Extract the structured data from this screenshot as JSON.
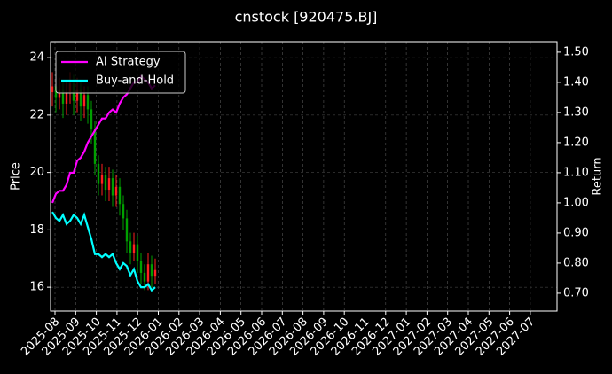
{
  "chart_data": {
    "type": "candlestick",
    "title": "cnstock [920475.BJ]",
    "ylabel": "Price",
    "y2label": "Return",
    "xticks": [
      "2025-08",
      "2025-09",
      "2025-10",
      "2025-11",
      "2025-12",
      "2026-01",
      "2026-02",
      "2026-03",
      "2026-04",
      "2026-05",
      "2026-06",
      "2026-07",
      "2026-08",
      "2026-09",
      "2026-10",
      "2026-11",
      "2026-12",
      "2027-01",
      "2027-02",
      "2027-03",
      "2027-04",
      "2027-05",
      "2027-06",
      "2027-07"
    ],
    "ylim": [
      15.17,
      24.56
    ],
    "yticks": [
      16,
      18,
      20,
      22,
      24
    ],
    "y2lim": [
      0.641,
      1.535
    ],
    "y2ticks": [
      {
        "value": 0.7,
        "label": "0.70"
      },
      {
        "value": 0.8,
        "label": "0.80"
      },
      {
        "value": 0.9,
        "label": "0.90"
      },
      {
        "value": 1.0,
        "label": "1.00"
      },
      {
        "value": 1.1,
        "label": "1.10"
      },
      {
        "value": 1.2,
        "label": "1.20"
      },
      {
        "value": 1.3,
        "label": "1.30"
      },
      {
        "value": 1.4,
        "label": "1.40"
      },
      {
        "value": 1.5,
        "label": "1.50"
      }
    ],
    "grid": true,
    "legend": "upper left",
    "up_color": "#ff2020",
    "down_color": "#00a000",
    "open": [
      22.8,
      23.0,
      22.6,
      22.9,
      22.4,
      22.8,
      23.1,
      22.5,
      22.9,
      22.3,
      22.7,
      22.2,
      21.5,
      20.3,
      19.6,
      19.9,
      19.4,
      19.8,
      19.2,
      19.5,
      18.9,
      18.4,
      17.6,
      17.2,
      17.5,
      16.9,
      16.5,
      16.2,
      16.8,
      16.4
    ],
    "high": [
      23.5,
      23.4,
      23.3,
      23.2,
      23.2,
      23.5,
      23.4,
      23.3,
      23.2,
      23.0,
      23.0,
      22.5,
      21.8,
      20.6,
      20.3,
      20.2,
      20.2,
      20.1,
      19.9,
      19.8,
      19.2,
      18.7,
      17.9,
      17.9,
      17.8,
      17.2,
      16.8,
      17.2,
      17.1,
      17.0
    ],
    "low": [
      22.3,
      22.1,
      22.2,
      21.9,
      22.0,
      22.4,
      22.0,
      22.1,
      21.8,
      21.9,
      21.7,
      21.0,
      19.9,
      19.2,
      19.2,
      19.0,
      19.0,
      18.8,
      18.8,
      18.5,
      18.0,
      17.2,
      16.8,
      16.9,
      16.5,
      16.1,
      15.9,
      15.9,
      16.0,
      16.1
    ],
    "close": [
      23.0,
      22.6,
      22.9,
      22.4,
      22.8,
      23.1,
      22.5,
      22.9,
      22.3,
      22.7,
      22.2,
      21.5,
      20.3,
      19.6,
      19.9,
      19.4,
      19.8,
      19.2,
      19.5,
      18.9,
      18.4,
      17.6,
      17.2,
      17.5,
      16.9,
      16.5,
      16.2,
      16.8,
      16.4,
      16.6
    ],
    "series": [
      {
        "name": "AI Strategy",
        "color": "#ff00ff",
        "axis": "y2",
        "values": [
          1.0,
          1.03,
          1.04,
          1.04,
          1.06,
          1.1,
          1.1,
          1.14,
          1.15,
          1.17,
          1.2,
          1.22,
          1.24,
          1.26,
          1.28,
          1.28,
          1.3,
          1.31,
          1.3,
          1.33,
          1.35,
          1.36,
          1.38,
          1.4,
          1.4,
          1.42,
          1.41,
          1.4,
          1.38,
          1.39
        ]
      },
      {
        "name": "Buy-and-Hold",
        "color": "#00ffff",
        "axis": "y2",
        "values": [
          0.97,
          0.95,
          0.94,
          0.96,
          0.93,
          0.94,
          0.96,
          0.95,
          0.93,
          0.96,
          0.92,
          0.88,
          0.83,
          0.83,
          0.82,
          0.83,
          0.82,
          0.83,
          0.8,
          0.78,
          0.8,
          0.79,
          0.76,
          0.78,
          0.74,
          0.72,
          0.72,
          0.73,
          0.71,
          0.72
        ]
      }
    ]
  }
}
